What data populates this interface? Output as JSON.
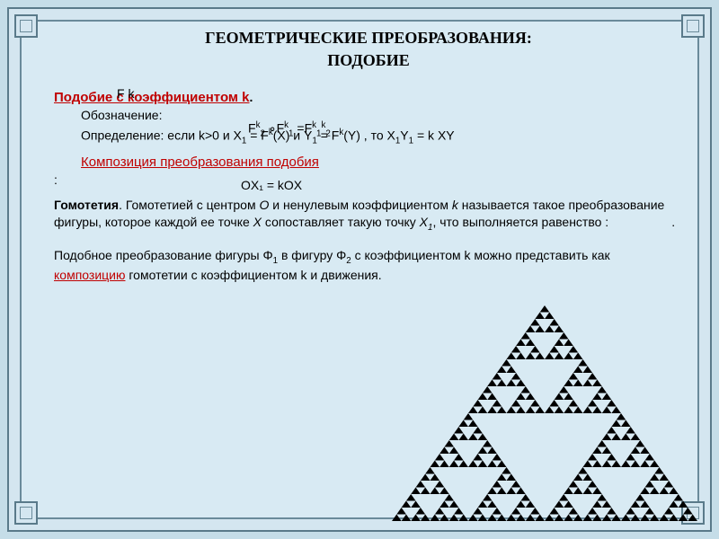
{
  "title_line1": "ГЕОМЕТРИЧЕСКИЕ  ПРЕОБРАЗОВАНИЯ:",
  "title_line2": "ПОДОБИЕ",
  "section1": {
    "heading": "Подобие с коэффициентом k",
    "heading_suffix": ".",
    "notation_label": "Обозначение:",
    "overlay_Fk": "F k",
    "definition_prefix": "Определение: если k>0 и X",
    "definition_mid1": "= F",
    "definition_mid2": "(X)  и Y",
    "definition_mid3": "= F",
    "definition_mid4": "(Y) , то X",
    "definition_mid5": "Y",
    "definition_mid6": "  = k XY",
    "sub1": "1",
    "supk": "k",
    "composition_overlay_pre": "F",
    "composition_overlay_k2": "k",
    "composition_overlay_2": "2",
    "composition_overlay_circ": " ∘F",
    "composition_overlay_k1": "k",
    "composition_overlay_1": "1",
    "composition_overlay_eq": " =F",
    "composition_overlay_k1b": "k",
    "composition_overlay_1b": "1",
    "composition_overlay_k2b": "k",
    "composition_overlay_2b": "2",
    "composition_heading": "Композиция преобразования подобия",
    "composition_suffix": ":"
  },
  "section2": {
    "heading": "Гомотетия",
    "text1": ". Гомотетией с центром ",
    "O": "О",
    "text2": " и ненулевым коэффициентом ",
    "k": "k",
    "text3": " называется такое преобразование фигуры, которое каждой ее точке ",
    "X": "X",
    "text4": " сопоставляет такую точку ",
    "X1_pre": "X",
    "X1_sub": "1",
    "text5": ", что выполняется равенство :",
    "text6": ".",
    "overlay_OX": "OX₁ = kOX"
  },
  "section3": {
    "text1": "Подобное преобразование фигуры ",
    "phi": "Φ",
    "s1": "1",
    "text2": "  в  фигуру ",
    "s2": "2",
    "text3": " с коэффициентом k можно представить как ",
    "link": "композицию",
    "text4": " гомотетии с коэффициентом k и движения."
  },
  "colors": {
    "bg": "#d8eaf3",
    "frame": "#5a7a8a",
    "red": "#c00000",
    "text": "#000000",
    "triangle": "#000000"
  }
}
